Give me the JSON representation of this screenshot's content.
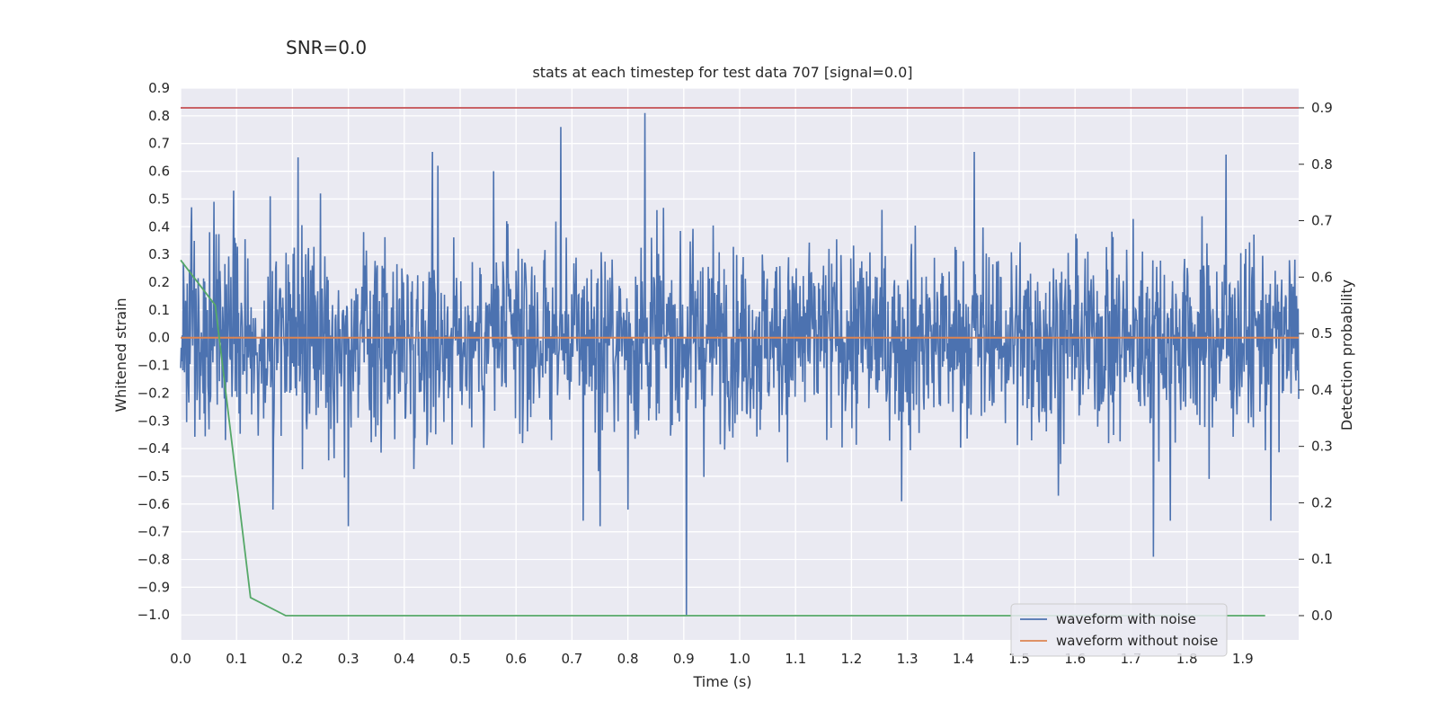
{
  "suptitle": "SNR=0.0",
  "chart_data": {
    "type": "line",
    "title": "stats at each timestep for test data 707 [signal=0.0]",
    "xlabel": "Time (s)",
    "ylabel": "Whitened strain",
    "y2label": "Detection probability",
    "xlim": [
      0.0,
      2.0
    ],
    "ylim": [
      -1.09,
      0.9
    ],
    "y2lim": [
      -0.043,
      0.935
    ],
    "x_ticks": [
      "0.0",
      "0.1",
      "0.2",
      "0.3",
      "0.4",
      "0.5",
      "0.6",
      "0.7",
      "0.8",
      "0.9",
      "1.0",
      "1.1",
      "1.2",
      "1.3",
      "1.4",
      "1.5",
      "1.6",
      "1.7",
      "1.8",
      "1.9"
    ],
    "y_ticks": [
      "0.9",
      "0.8",
      "0.7",
      "0.6",
      "0.5",
      "0.4",
      "0.3",
      "0.2",
      "0.1",
      "0.0",
      "−0.1",
      "−0.2",
      "−0.3",
      "−0.4",
      "−0.5",
      "−0.6",
      "−0.7",
      "−0.8",
      "−0.9",
      "−1.0"
    ],
    "y2_ticks": [
      "0.9",
      "0.8",
      "0.7",
      "0.6",
      "0.5",
      "0.4",
      "0.3",
      "0.2",
      "0.1",
      "0.0"
    ],
    "grid": true,
    "legend_position": "lower-right",
    "series": [
      {
        "name": "waveform with noise",
        "color": "#4c72b0",
        "axis": "left",
        "x_range": [
          0.0,
          2.0
        ],
        "n_points": 2048,
        "peaks": [
          {
            "x": 0.005,
            "y": 0.27
          },
          {
            "x": 0.02,
            "y": 0.47
          },
          {
            "x": 0.06,
            "y": 0.49
          },
          {
            "x": 0.095,
            "y": 0.53
          },
          {
            "x": 0.16,
            "y": 0.51
          },
          {
            "x": 0.165,
            "y": -0.62
          },
          {
            "x": 0.21,
            "y": 0.65
          },
          {
            "x": 0.25,
            "y": 0.52
          },
          {
            "x": 0.3,
            "y": -0.68
          },
          {
            "x": 0.45,
            "y": 0.67
          },
          {
            "x": 0.46,
            "y": 0.62
          },
          {
            "x": 0.56,
            "y": 0.6
          },
          {
            "x": 0.68,
            "y": 0.76
          },
          {
            "x": 0.72,
            "y": -0.66
          },
          {
            "x": 0.75,
            "y": -0.68
          },
          {
            "x": 0.8,
            "y": -0.62
          },
          {
            "x": 0.83,
            "y": 0.81
          },
          {
            "x": 0.905,
            "y": -1.0
          },
          {
            "x": 1.29,
            "y": -0.59
          },
          {
            "x": 1.42,
            "y": 0.67
          },
          {
            "x": 1.57,
            "y": -0.57
          },
          {
            "x": 1.74,
            "y": -0.79
          },
          {
            "x": 1.77,
            "y": -0.66
          },
          {
            "x": 1.87,
            "y": 0.66
          },
          {
            "x": 1.95,
            "y": -0.66
          }
        ]
      },
      {
        "name": "waveform without noise",
        "color": "#dd8452",
        "axis": "left",
        "x": [
          0.0,
          2.0
        ],
        "y": [
          0.0,
          0.0
        ]
      },
      {
        "name": "",
        "color": "#55a868",
        "axis": "right",
        "x": [
          0.0,
          0.062,
          0.125,
          0.188,
          0.25,
          0.5,
          1.0,
          1.5,
          1.94
        ],
        "y": [
          0.63,
          0.55,
          0.032,
          0.0,
          0.0,
          0.0,
          0.0,
          0.0,
          0.0
        ]
      },
      {
        "name": "",
        "color": "#c44e52",
        "axis": "right",
        "x": [
          0.0,
          2.0
        ],
        "y": [
          0.9,
          0.9
        ]
      }
    ]
  }
}
